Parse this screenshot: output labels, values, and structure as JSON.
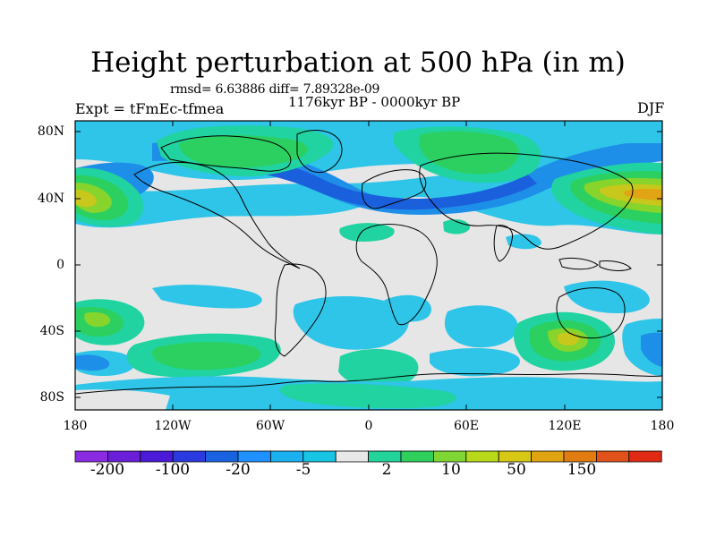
{
  "title": "Height perturbation at 500 hPa (in m)",
  "stats": "rmsd= 6.63886 diff= 7.89328e-09",
  "period": "1176kyr BP - 0000kyr BP",
  "experiment": "Expt = tFmEc-tfmea",
  "season": "DJF",
  "y_axis_labels": [
    "80N",
    "40N",
    "0",
    "40S",
    "80S"
  ],
  "x_axis_labels": [
    "180",
    "120W",
    "60W",
    "0",
    "60E",
    "120E",
    "180"
  ],
  "colorbar": {
    "labels": [
      "-200",
      "-100",
      "-20",
      "-5",
      "2",
      "10",
      "50",
      "150"
    ],
    "colors": [
      "#8a2be2",
      "#6a1ed8",
      "#4a1ad8",
      "#2a3ae0",
      "#1a63e0",
      "#1e90ff",
      "#1bb0f0",
      "#17c4e4",
      "#e8e8e8",
      "#22d39a",
      "#2ecf5a",
      "#7fd632",
      "#b8d81a",
      "#d6c814",
      "#e0a410",
      "#e07c10",
      "#e0521a",
      "#e02a14"
    ]
  },
  "field_colors": {
    "neutral": "#e6e6e6",
    "neg1": "#2ec5e8",
    "neg2": "#1e8fe8",
    "neg3": "#1a5fdc",
    "pos1": "#20d3a0",
    "pos2": "#2cd060",
    "pos3": "#86d42c",
    "pos4": "#c8c81c",
    "pos5": "#e0a414"
  }
}
